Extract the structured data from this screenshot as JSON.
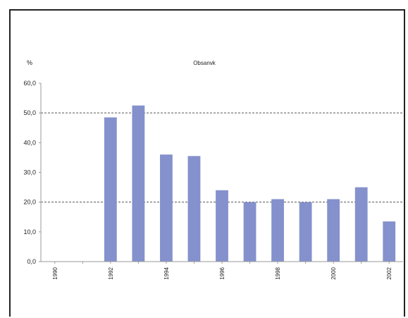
{
  "chart_data": {
    "type": "bar",
    "title": "Obsanvk",
    "ylabel": "%",
    "ylim": [
      0,
      60
    ],
    "yticks": [
      "0,0",
      "10,0",
      "20,0",
      "30,0",
      "40,0",
      "50,0",
      "60,0"
    ],
    "categories": [
      "1990",
      "1991",
      "1992",
      "1993",
      "1994",
      "1995",
      "1996",
      "1997",
      "1998",
      "1999",
      "2000",
      "2001",
      "2002"
    ],
    "values": [
      0,
      0,
      48.5,
      52.5,
      36,
      35.5,
      24,
      20,
      21,
      20,
      21,
      25,
      13.5
    ],
    "xtick_labels_shown": [
      "1990",
      "",
      "1992",
      "",
      "1994",
      "",
      "1996",
      "",
      "1998",
      "",
      "2000",
      "",
      "2002"
    ],
    "gridlines_dashed_at": [
      20,
      50
    ],
    "bar_color": "#8491cc",
    "grid_color": "#555555",
    "axis_color": "#9a9a9a",
    "legend": "none"
  }
}
